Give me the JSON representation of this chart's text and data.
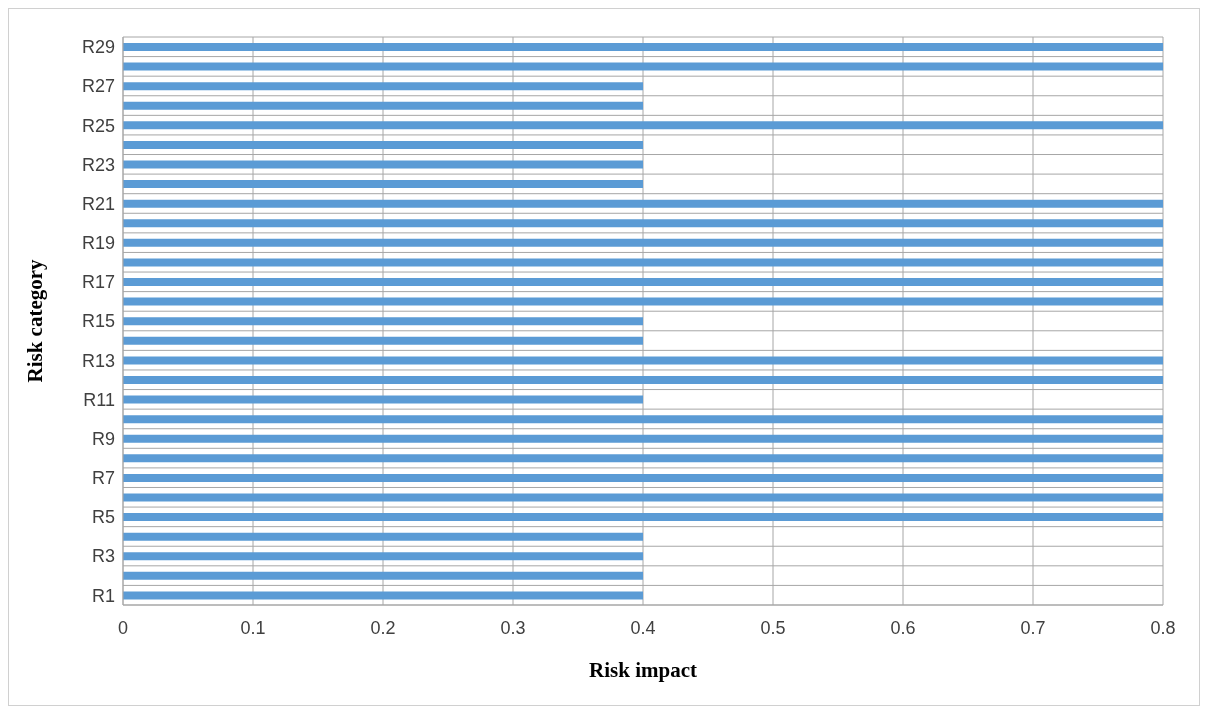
{
  "chart_data": {
    "type": "bar",
    "orientation": "horizontal",
    "xlabel": "Risk impact",
    "ylabel": "Risk category",
    "categories": [
      "R29",
      null,
      "R27",
      null,
      "R25",
      null,
      "R23",
      null,
      "R21",
      null,
      "R19",
      null,
      "R17",
      null,
      "R15",
      null,
      "R13",
      null,
      "R11",
      null,
      "R9",
      null,
      "R7",
      null,
      "R5",
      null,
      "R3",
      null,
      "R1"
    ],
    "values": [
      0.8,
      0.8,
      0.4,
      0.4,
      0.8,
      0.4,
      0.4,
      0.4,
      0.8,
      0.8,
      0.8,
      0.8,
      0.8,
      0.8,
      0.4,
      0.4,
      0.8,
      0.8,
      0.4,
      0.8,
      0.8,
      0.8,
      0.8,
      0.8,
      0.8,
      0.4,
      0.4,
      0.4,
      0.4
    ],
    "color": "#5b9bd5",
    "xlim": [
      0,
      0.8
    ],
    "xticks": [
      0,
      0.1,
      0.2,
      0.3,
      0.4,
      0.5,
      0.6,
      0.7,
      0.8
    ],
    "grid": true
  }
}
